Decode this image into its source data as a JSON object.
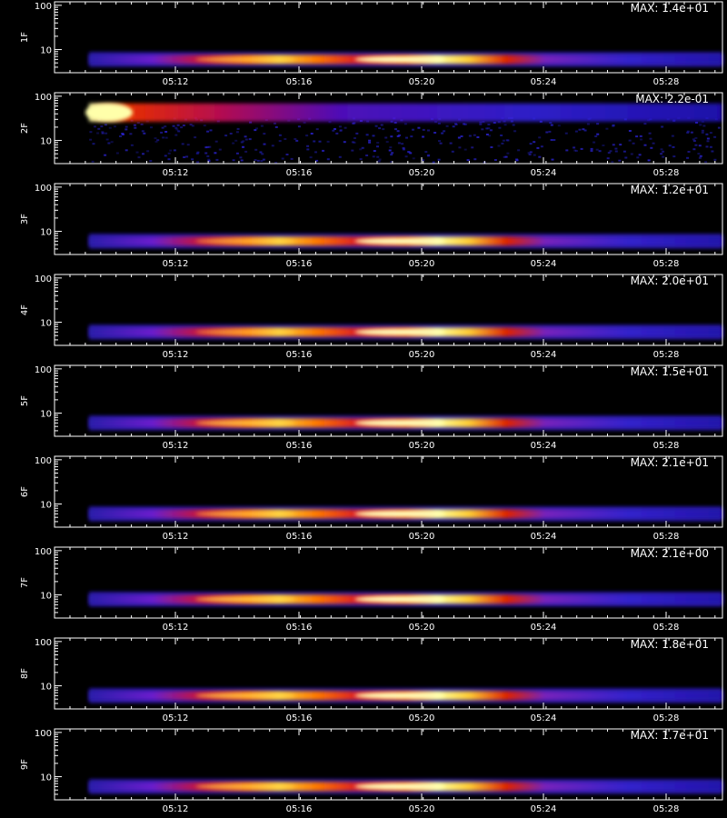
{
  "chart_data": {
    "type": "heatmap",
    "x_ticks": [
      "05:12",
      "05:16",
      "05:20",
      "05:24",
      "05:28"
    ],
    "y_ticks": [
      "10",
      "100"
    ],
    "x_axis_title": "",
    "panels": [
      {
        "label": "1F",
        "max_label": "MAX: 1.4e+01",
        "max_value": 14,
        "shape": "band",
        "hot": [
          0.6,
          1.0
        ],
        "band_level": 6
      },
      {
        "label": "2F",
        "max_label": "MAX: 2.2e-01",
        "max_value": 0.22,
        "shape": "burst",
        "hot": [
          1.0,
          0.3
        ],
        "band_level": 45
      },
      {
        "label": "3F",
        "max_label": "MAX: 1.2e+01",
        "max_value": 12,
        "shape": "band",
        "hot": [
          0.55,
          1.0
        ],
        "band_level": 6
      },
      {
        "label": "4F",
        "max_label": "MAX: 2.0e+01",
        "max_value": 20,
        "shape": "band",
        "hot": [
          0.5,
          1.0
        ],
        "band_level": 6
      },
      {
        "label": "5F",
        "max_label": "MAX: 1.5e+01",
        "max_value": 15,
        "shape": "band",
        "hot": [
          0.7,
          1.0
        ],
        "band_level": 6
      },
      {
        "label": "6F",
        "max_label": "MAX: 2.1e+01",
        "max_value": 21,
        "shape": "band",
        "hot": [
          0.6,
          1.0
        ],
        "band_level": 6
      },
      {
        "label": "7F",
        "max_label": "MAX: 2.1e+00",
        "max_value": 2.1,
        "shape": "band",
        "hot": [
          0.75,
          1.0
        ],
        "band_level": 8
      },
      {
        "label": "8F",
        "max_label": "MAX: 1.8e+01",
        "max_value": 18,
        "shape": "band",
        "hot": [
          0.7,
          1.0
        ],
        "band_level": 6
      },
      {
        "label": "9F",
        "max_label": "MAX: 1.7e+01",
        "max_value": 17,
        "shape": "band",
        "hot": [
          0.65,
          1.0
        ],
        "band_level": 6
      }
    ]
  }
}
